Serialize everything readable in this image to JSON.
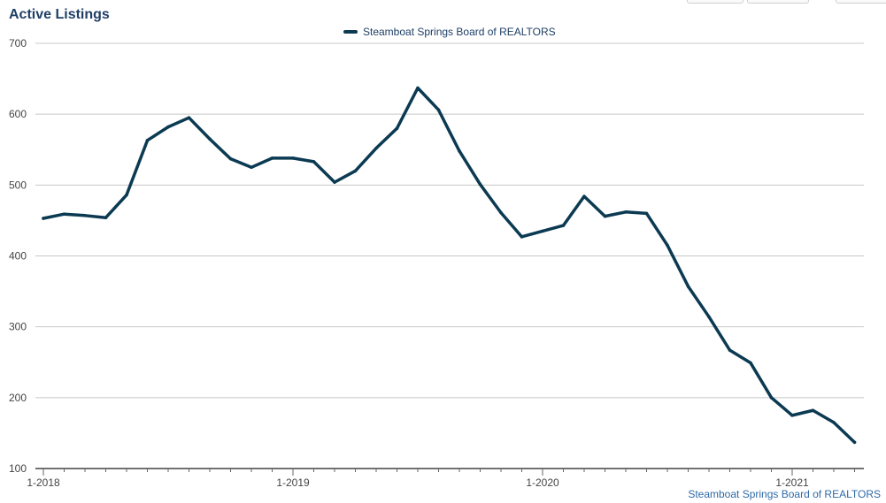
{
  "chart_data": {
    "type": "line",
    "title": "Active Listings",
    "xlabel": "",
    "ylabel": "",
    "ylim": [
      100,
      700
    ],
    "yticks": [
      100,
      200,
      300,
      400,
      500,
      600,
      700
    ],
    "x_tick_labels": [
      "1-2018",
      "1-2019",
      "1-2020",
      "1-2021"
    ],
    "grid": true,
    "legend_position": "top-center",
    "x": [
      "2018-01",
      "2018-02",
      "2018-03",
      "2018-04",
      "2018-05",
      "2018-06",
      "2018-07",
      "2018-08",
      "2018-09",
      "2018-10",
      "2018-11",
      "2018-12",
      "2019-01",
      "2019-02",
      "2019-03",
      "2019-04",
      "2019-05",
      "2019-06",
      "2019-07",
      "2019-08",
      "2019-09",
      "2019-10",
      "2019-11",
      "2019-12",
      "2020-01",
      "2020-02",
      "2020-03",
      "2020-04",
      "2020-05",
      "2020-06",
      "2020-07",
      "2020-08",
      "2020-09",
      "2020-10",
      "2020-11",
      "2020-12",
      "2021-01",
      "2021-02",
      "2021-03",
      "2021-04"
    ],
    "series": [
      {
        "name": "Steamboat Springs Board of REALTORS",
        "color": "#0b3a52",
        "values": [
          453,
          459,
          457,
          454,
          486,
          563,
          582,
          595,
          565,
          537,
          525,
          538,
          538,
          533,
          504,
          520,
          552,
          580,
          637,
          606,
          548,
          501,
          461,
          427,
          435,
          443,
          484,
          456,
          462,
          460,
          415,
          357,
          314,
          267,
          249,
          200,
          175,
          182,
          165,
          137
        ]
      }
    ]
  },
  "source_credit": "Steamboat Springs Board of REALTORS"
}
